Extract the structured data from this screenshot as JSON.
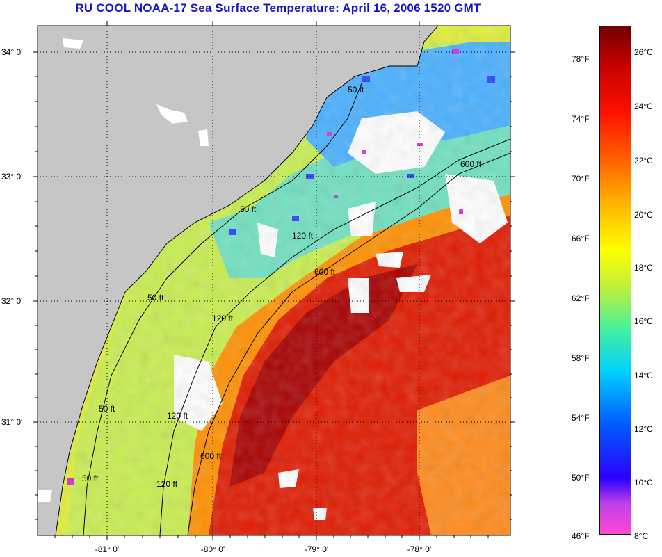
{
  "title": "RU COOL  NOAA-17  Sea Surface Temperature:  April 16, 2006 1520 GMT",
  "map": {
    "lat_labels": [
      "34° 0'",
      "33° 0'",
      "32° 0'",
      "31° 0'"
    ],
    "lon_labels": [
      "-81° 0'",
      "-80° 0'",
      "-79° 0'",
      "-78° 0'"
    ],
    "contour_labels": [
      "50 ft",
      "50 ft",
      "50 ft",
      "50 ft",
      "50 ft",
      "120 ft",
      "120 ft",
      "120 ft",
      "120 ft",
      "600 ft",
      "600 ft",
      "600 ft"
    ],
    "colors": {
      "land": "#c8c8c8",
      "cloud": "#ffffff",
      "gulf_stream": "#d81000",
      "shelf": "#e8f040",
      "cool": "#2a60ff"
    }
  },
  "colorbar": {
    "fahrenheit_labels": [
      "78°F",
      "74°F",
      "70°F",
      "66°F",
      "62°F",
      "58°F",
      "54°F",
      "50°F",
      "46°F"
    ],
    "celsius_labels": [
      "26°C",
      "24°C",
      "22°C",
      "20°C",
      "18°C",
      "16°C",
      "14°C",
      "12°C",
      "10°C",
      "8°C"
    ],
    "range_celsius": [
      8,
      27
    ]
  }
}
